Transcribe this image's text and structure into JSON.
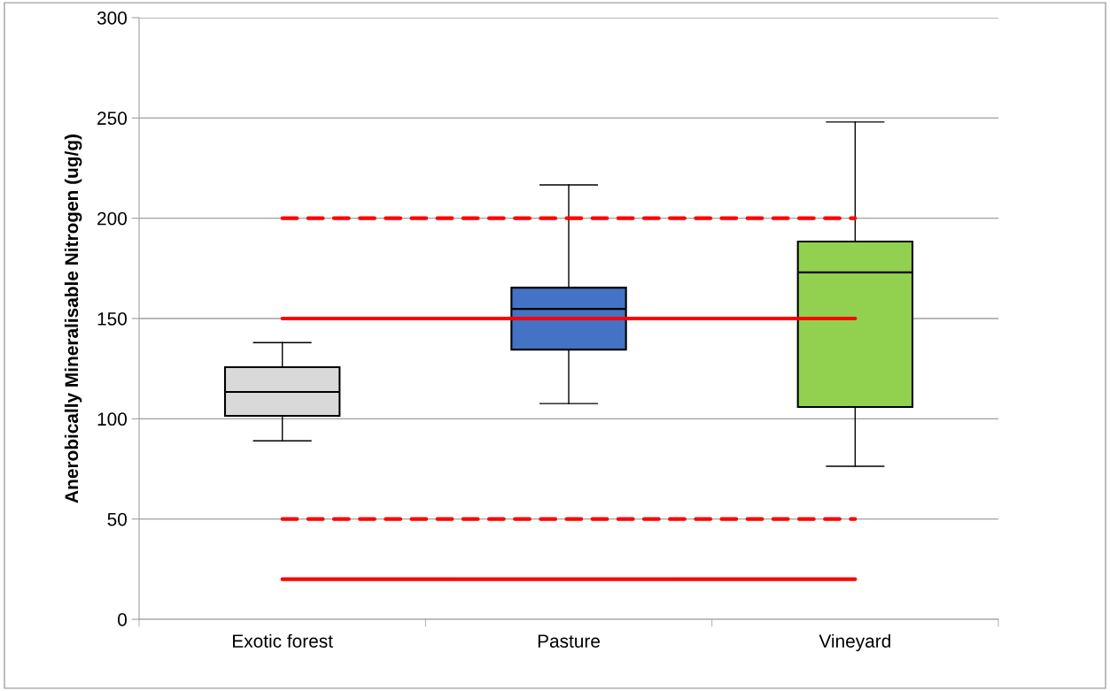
{
  "chart_data": {
    "type": "box",
    "ylabel": "Anerobically Mineralisable Nitrogen (ug/g)",
    "categories": [
      "Exotic forest",
      "Pasture",
      "Vineyard"
    ],
    "colors": [
      "#d9d9d9",
      "#4472c4",
      "#92d050"
    ],
    "boxes": [
      {
        "low": 89,
        "q1": 101.5,
        "median": 113.4,
        "q3": 125.7,
        "high": 138
      },
      {
        "low": 107.6,
        "q1": 134.5,
        "median": 154.8,
        "q3": 165.4,
        "high": 216.6
      },
      {
        "low": 76.3,
        "q1": 105.9,
        "median": 173,
        "q3": 188.4,
        "high": 248
      }
    ],
    "ylim": [
      0,
      300
    ],
    "yticks": [
      0,
      50,
      100,
      150,
      200,
      250,
      300
    ],
    "grid": "y",
    "ref_lines": [
      {
        "axis": "y",
        "value": 200,
        "color": "#ff0000",
        "line_style": "dashed"
      },
      {
        "axis": "y",
        "value": 150,
        "color": "#ff0000",
        "line_style": "solid"
      },
      {
        "axis": "y",
        "value": 50,
        "color": "#ff0000",
        "line_style": "dashed"
      },
      {
        "axis": "y",
        "value": 20,
        "color": "#ff0000",
        "line_style": "solid"
      }
    ]
  }
}
